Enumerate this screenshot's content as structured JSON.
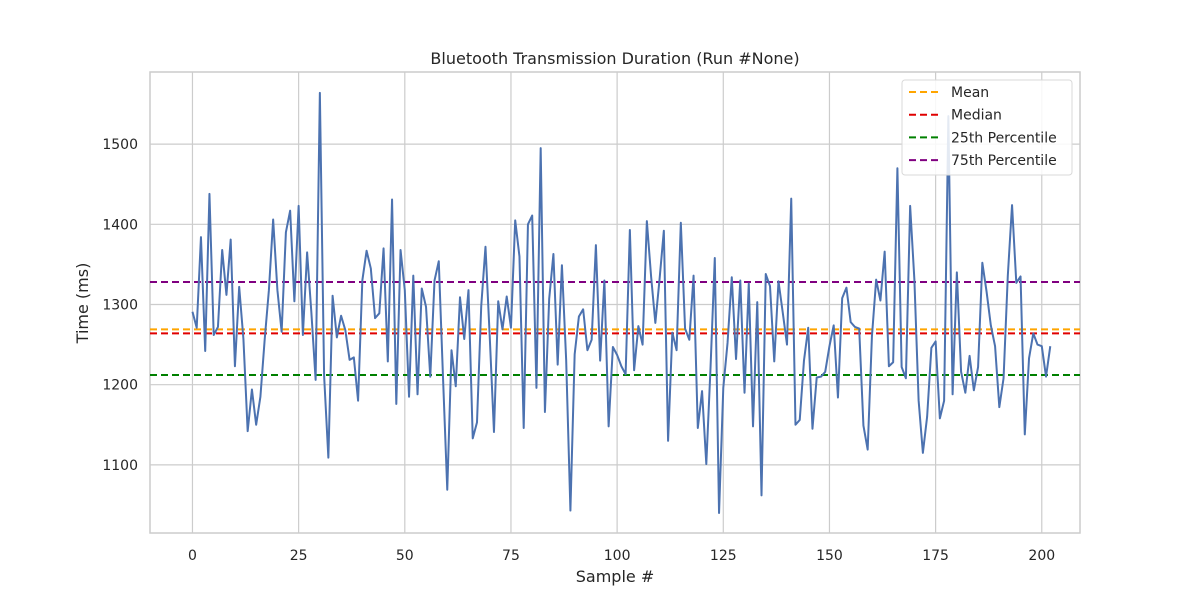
{
  "chart_data": {
    "type": "line",
    "title": "Bluetooth Transmission Duration (Run #None)",
    "xlabel": "Sample #",
    "ylabel": "Time (ms)",
    "xlim": [
      -10,
      209
    ],
    "ylim": [
      1015,
      1590
    ],
    "xticks": [
      0,
      25,
      50,
      75,
      100,
      125,
      150,
      175,
      200
    ],
    "yticks": [
      1100,
      1200,
      1300,
      1400,
      1500
    ],
    "grid": true,
    "legend_position": "top-right",
    "series": [
      {
        "color": "#4c72b0",
        "x_start": 0,
        "values": [
          1291,
          1271,
          1384,
          1242,
          1438,
          1262,
          1272,
          1368,
          1312,
          1381,
          1223,
          1322,
          1257,
          1142,
          1194,
          1150,
          1185,
          1256,
          1318,
          1406,
          1318,
          1266,
          1390,
          1417,
          1304,
          1423,
          1262,
          1365,
          1290,
          1206,
          1564,
          1211,
          1109,
          1311,
          1259,
          1286,
          1268,
          1231,
          1234,
          1180,
          1330,
          1367,
          1345,
          1283,
          1289,
          1370,
          1229,
          1431,
          1176,
          1368,
          1318,
          1185,
          1336,
          1188,
          1320,
          1297,
          1210,
          1330,
          1354,
          1209,
          1069,
          1243,
          1198,
          1309,
          1257,
          1318,
          1133,
          1153,
          1298,
          1372,
          1260,
          1141,
          1304,
          1269,
          1310,
          1271,
          1405,
          1360,
          1146,
          1400,
          1411,
          1196,
          1495,
          1166,
          1307,
          1363,
          1225,
          1349,
          1231,
          1043,
          1238,
          1285,
          1294,
          1243,
          1256,
          1374,
          1230,
          1330,
          1148,
          1247,
          1237,
          1223,
          1213,
          1393,
          1218,
          1273,
          1250,
          1404,
          1335,
          1277,
          1332,
          1392,
          1130,
          1265,
          1243,
          1402,
          1270,
          1256,
          1336,
          1146,
          1192,
          1101,
          1222,
          1358,
          1040,
          1196,
          1252,
          1334,
          1232,
          1330,
          1190,
          1326,
          1148,
          1303,
          1062,
          1338,
          1323,
          1229,
          1329,
          1290,
          1250,
          1432,
          1150,
          1156,
          1230,
          1271,
          1145,
          1209,
          1210,
          1216,
          1248,
          1274,
          1184,
          1308,
          1321,
          1278,
          1272,
          1270,
          1149,
          1119,
          1260,
          1331,
          1305,
          1366,
          1223,
          1228,
          1470,
          1222,
          1208,
          1423,
          1331,
          1180,
          1115,
          1160,
          1246,
          1254,
          1158,
          1180,
          1535,
          1188,
          1340,
          1216,
          1190,
          1236,
          1193,
          1222,
          1352,
          1316,
          1274,
          1248,
          1172,
          1208,
          1336,
          1424,
          1327,
          1335,
          1138,
          1233,
          1264,
          1250,
          1248,
          1210,
          1248
        ]
      }
    ],
    "reference_lines": [
      {
        "name": "Mean",
        "value": 1269,
        "color": "#ffa500"
      },
      {
        "name": "Median",
        "value": 1264,
        "color": "#e00000"
      },
      {
        "name": "25th Percentile",
        "value": 1212,
        "color": "#008000"
      },
      {
        "name": "75th Percentile",
        "value": 1328,
        "color": "#800080"
      }
    ]
  }
}
